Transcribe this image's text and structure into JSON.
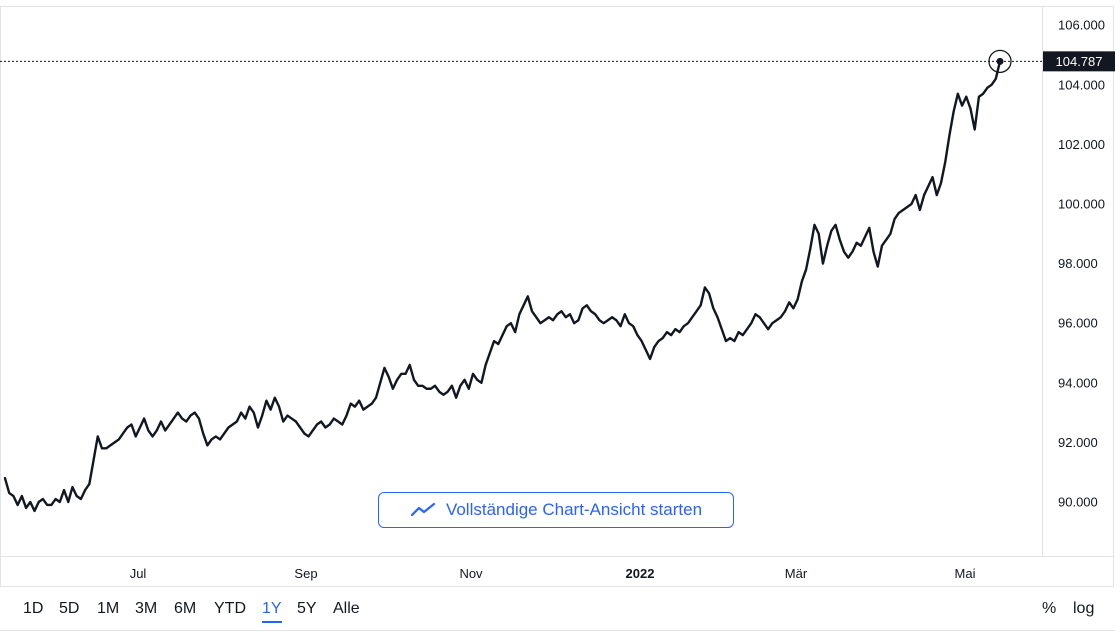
{
  "chart_data": {
    "type": "line",
    "title": "",
    "xlabel": "",
    "ylabel": "",
    "x_tick_labels": [
      "Jul",
      "Sep",
      "Nov",
      "2022",
      "Mär",
      "Mai"
    ],
    "y_tick_labels": [
      "106.000",
      "104.000",
      "102.000",
      "100.000",
      "98.000",
      "96.000",
      "94.000",
      "92.000",
      "90.000"
    ],
    "y_ticks": [
      106000,
      104000,
      102000,
      100000,
      98000,
      96000,
      94000,
      92000,
      90000
    ],
    "ylim": [
      88600,
      106500
    ],
    "last_value": 104787,
    "last_value_label": "104.787",
    "grid": false,
    "line_color": "#131722",
    "series": [
      {
        "values": [
          90800,
          90300,
          90200,
          89900,
          90200,
          89800,
          90000,
          89700,
          90000,
          90100,
          89900,
          89900,
          90100,
          90000,
          90400,
          90000,
          90500,
          90200,
          90100,
          90400,
          90600,
          91400,
          92200,
          91800,
          91800,
          91900,
          92000,
          92100,
          92300,
          92500,
          92600,
          92200,
          92500,
          92800,
          92400,
          92200,
          92400,
          92700,
          92400,
          92600,
          92800,
          93000,
          92800,
          92700,
          92900,
          93000,
          92800,
          92300,
          91900,
          92100,
          92200,
          92100,
          92300,
          92500,
          92600,
          92700,
          93000,
          92800,
          93200,
          93000,
          92500,
          92900,
          93400,
          93100,
          93500,
          93200,
          92700,
          92900,
          92800,
          92700,
          92500,
          92300,
          92200,
          92400,
          92600,
          92700,
          92500,
          92600,
          92800,
          92700,
          92600,
          92900,
          93300,
          93200,
          93400,
          93100,
          93200,
          93300,
          93500,
          94000,
          94500,
          94200,
          93800,
          94100,
          94300,
          94300,
          94600,
          94100,
          93900,
          93900,
          93800,
          93800,
          93900,
          93700,
          93600,
          93700,
          93900,
          93500,
          93900,
          94100,
          93800,
          94300,
          94100,
          94000,
          94600,
          95000,
          95400,
          95300,
          95600,
          95900,
          96000,
          95700,
          96300,
          96600,
          96900,
          96400,
          96200,
          96000,
          96100,
          96200,
          96100,
          96300,
          96400,
          96200,
          96300,
          96000,
          96100,
          96500,
          96600,
          96400,
          96300,
          96100,
          96000,
          96100,
          96200,
          96100,
          95900,
          96300,
          96000,
          95900,
          95600,
          95400,
          95100,
          94800,
          95200,
          95400,
          95500,
          95700,
          95600,
          95800,
          95700,
          95900,
          96000,
          96200,
          96400,
          96600,
          97200,
          97000,
          96500,
          96200,
          95800,
          95400,
          95500,
          95400,
          95700,
          95600,
          95800,
          96000,
          96300,
          96200,
          96000,
          95800,
          96000,
          96100,
          96200,
          96400,
          96700,
          96500,
          96800,
          97400,
          97800,
          98500,
          99300,
          99000,
          98000,
          98600,
          99100,
          99300,
          98800,
          98400,
          98200,
          98400,
          98700,
          98600,
          98900,
          99200,
          98400,
          97900,
          98600,
          98800,
          99000,
          99500,
          99700,
          99800,
          99900,
          100000,
          100300,
          99800,
          100300,
          100600,
          100900,
          100300,
          100700,
          101400,
          102300,
          103100,
          103700,
          103300,
          103600,
          103200,
          102500,
          103600,
          103700,
          103900,
          104000,
          104200,
          104787
        ]
      }
    ]
  },
  "controls": {
    "fullview_label": "Vollständige Chart-Ansicht starten",
    "ranges": [
      "1D",
      "5D",
      "1M",
      "3M",
      "6M",
      "YTD",
      "1Y",
      "5Y",
      "Alle"
    ],
    "active_range": "1Y",
    "pct_label": "%",
    "log_label": "log"
  }
}
